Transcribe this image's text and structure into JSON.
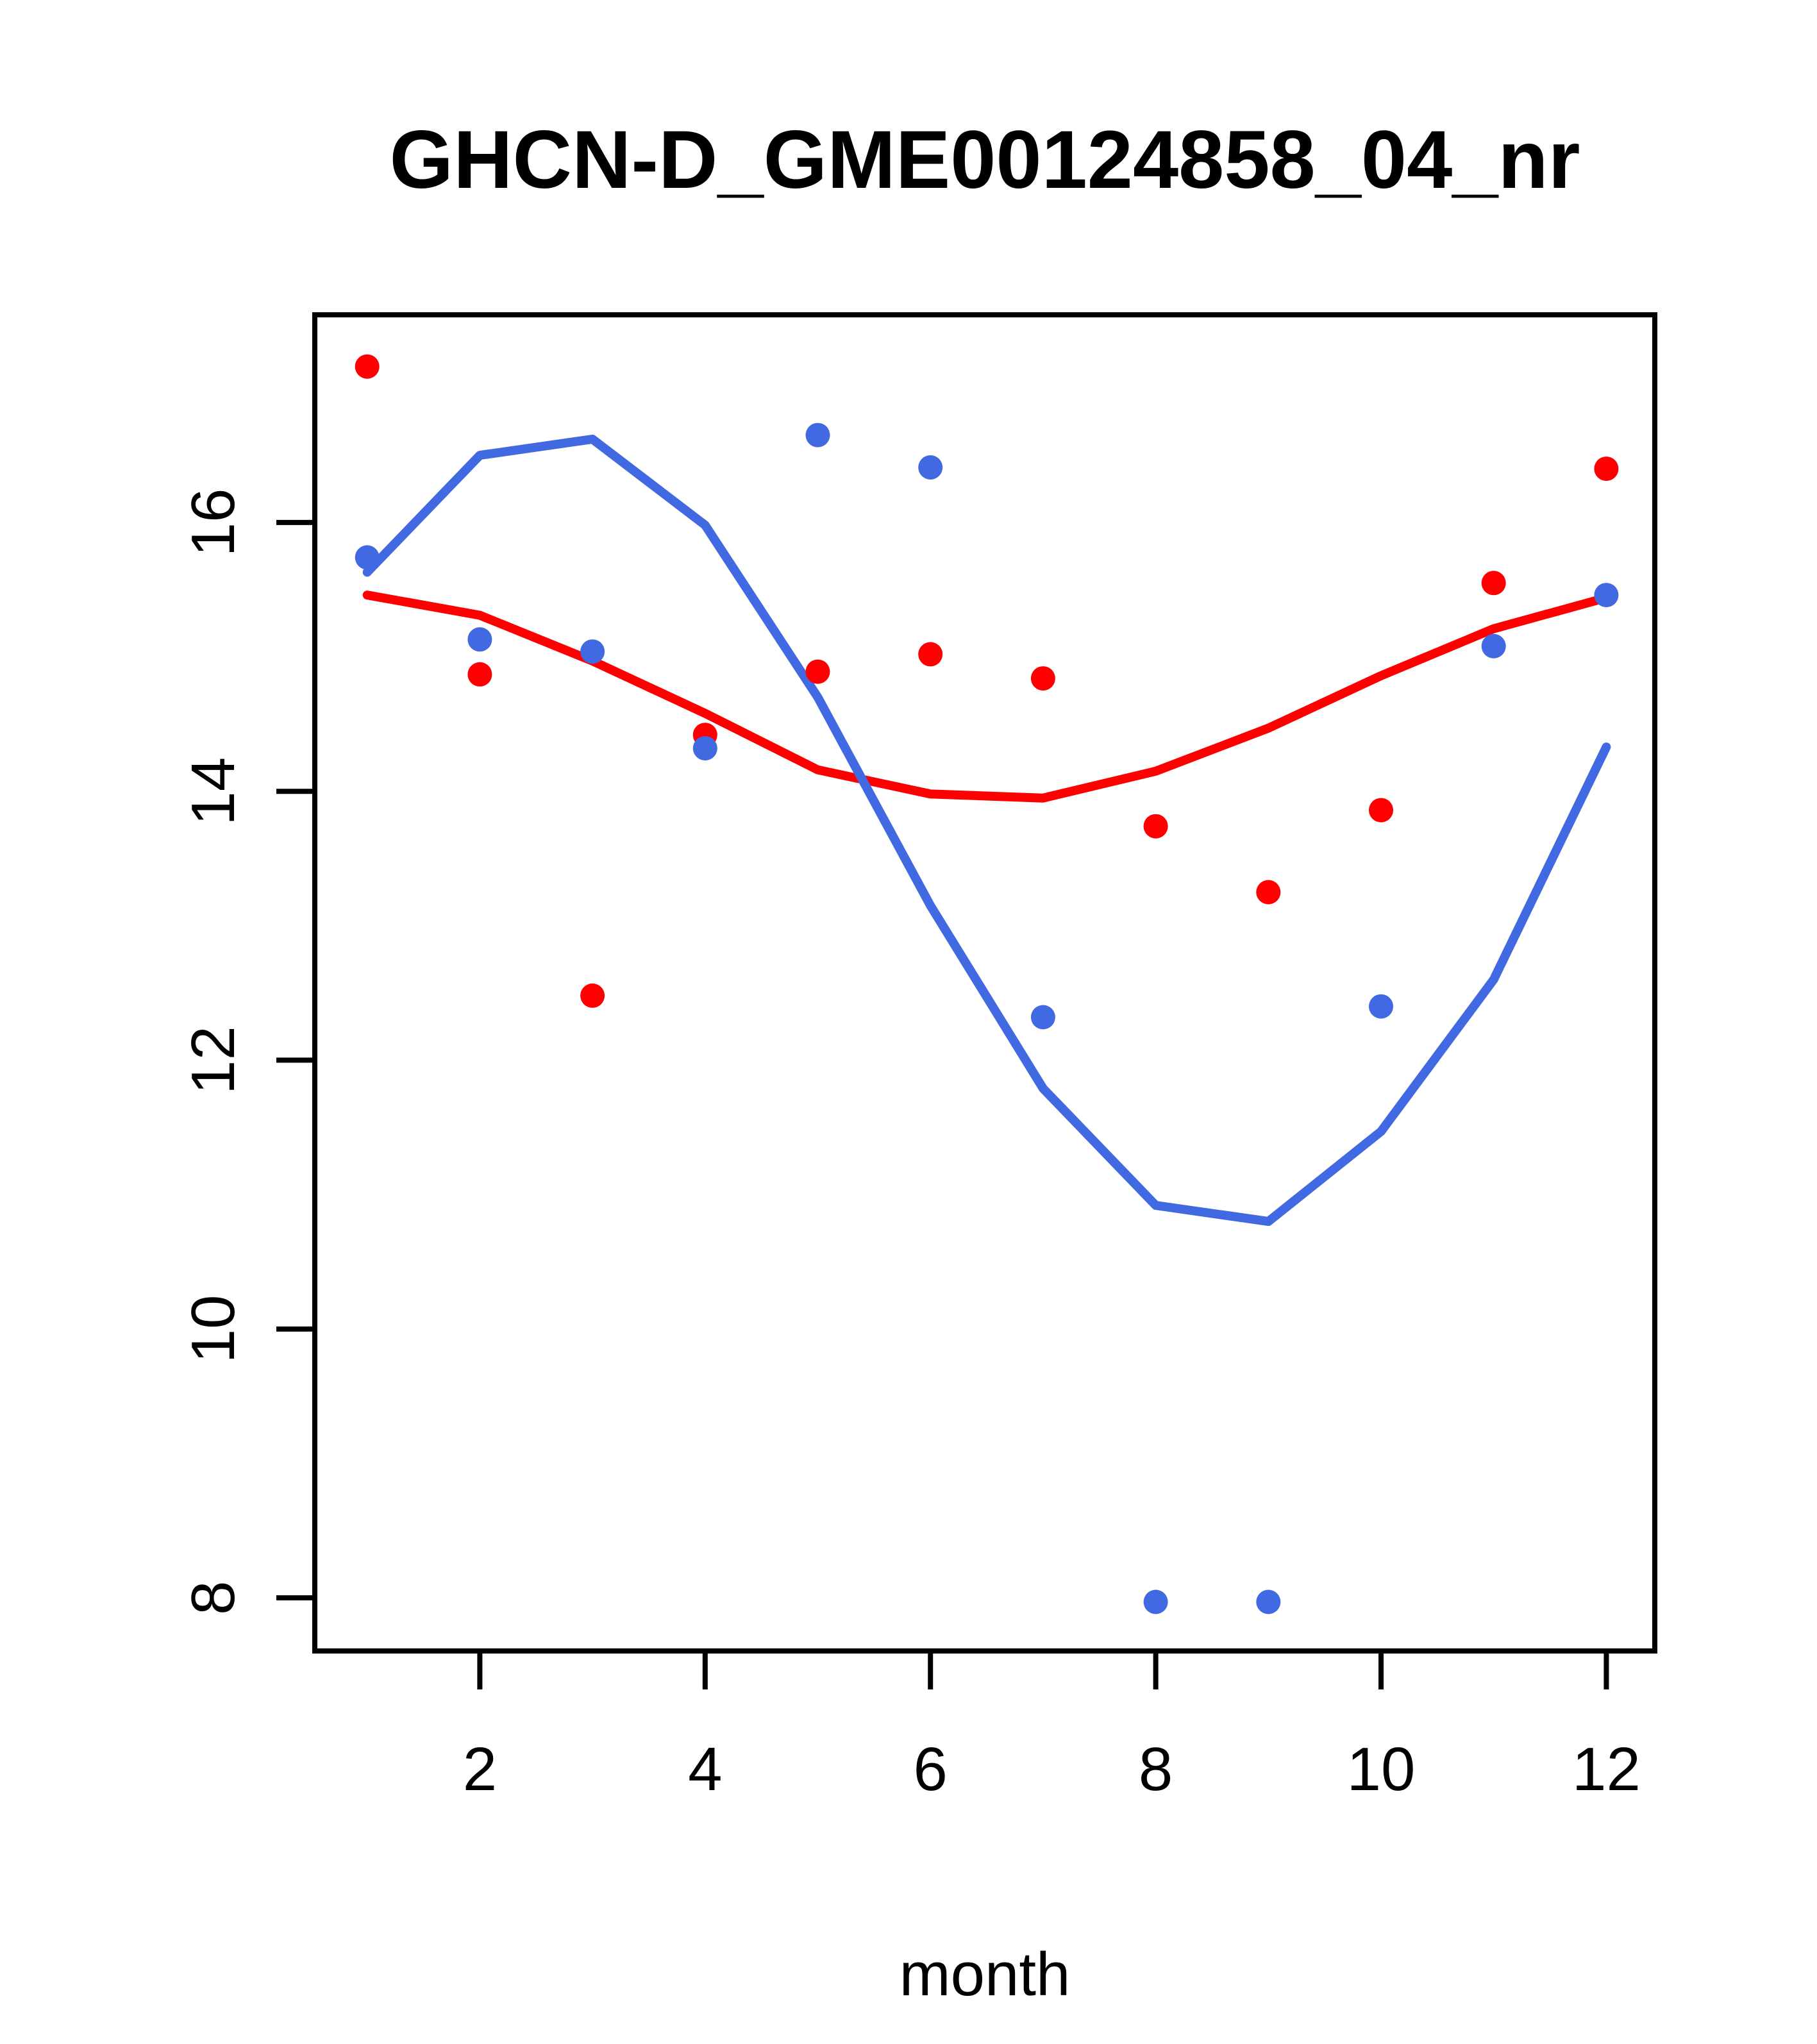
{
  "title": "GHCN-D_GME00124858_04_nr",
  "xlabel": "month",
  "colors": {
    "red": "#FF0000",
    "blue": "#4169E1",
    "axis": "#000000",
    "background": "#FFFFFF",
    "text": "#000000"
  },
  "chart_data": {
    "type": "scatter",
    "title": "GHCN-D_GME00124858_04_nr",
    "xlabel": "month",
    "ylabel": "",
    "grid": false,
    "legend": "none",
    "x": [
      1,
      2,
      3,
      4,
      5,
      6,
      7,
      8,
      9,
      10,
      11,
      12
    ],
    "x_ticks": [
      2,
      4,
      6,
      8,
      10,
      12
    ],
    "y_ticks": [
      8,
      10,
      12,
      14,
      16
    ],
    "xlim": [
      0.535,
      12.43
    ],
    "ylim": [
      7.605,
      17.545
    ],
    "series": [
      {
        "name": "red points",
        "kind": "points",
        "color_key": "red",
        "values": [
          17.16,
          14.87,
          12.48,
          14.42,
          14.89,
          15.02,
          14.84,
          13.74,
          13.25,
          13.86,
          15.55,
          16.4
        ]
      },
      {
        "name": "blue points",
        "kind": "points",
        "color_key": "blue",
        "values": [
          15.74,
          15.13,
          15.04,
          14.32,
          16.65,
          16.41,
          12.32,
          7.97,
          7.97,
          12.4,
          15.08,
          15.46
        ]
      },
      {
        "name": "red line",
        "kind": "line",
        "color_key": "red",
        "values": [
          15.46,
          15.31,
          14.97,
          14.58,
          14.16,
          13.98,
          13.95,
          14.15,
          14.47,
          14.86,
          15.21,
          15.44
        ]
      },
      {
        "name": "blue line",
        "kind": "line",
        "color_key": "blue",
        "values": [
          15.63,
          16.5,
          16.62,
          15.98,
          14.7,
          13.15,
          11.79,
          10.92,
          10.8,
          11.47,
          12.6,
          14.33
        ]
      }
    ]
  }
}
